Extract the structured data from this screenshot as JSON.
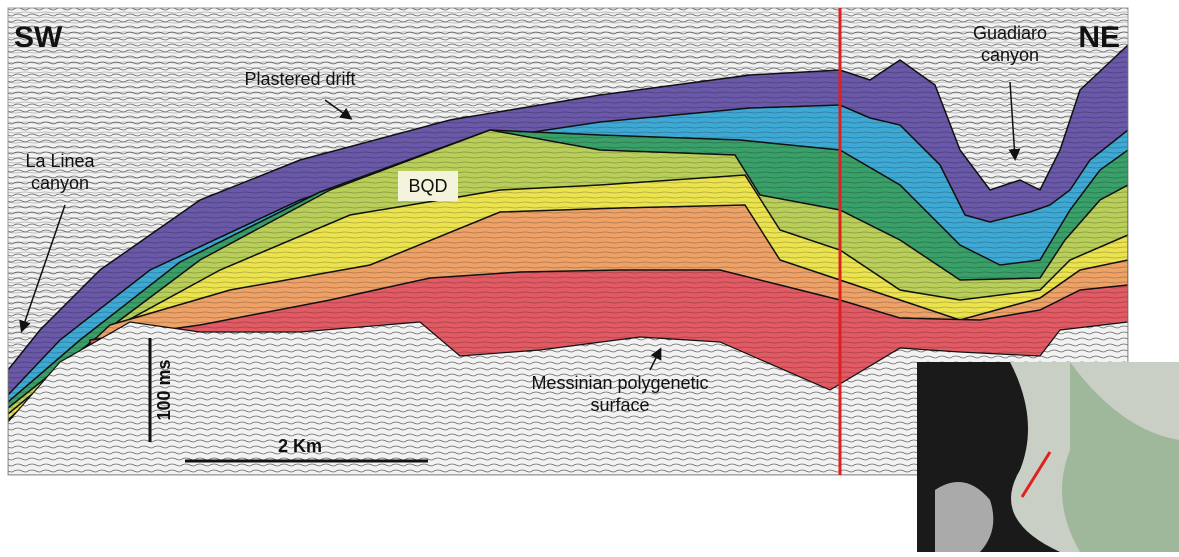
{
  "panel": {
    "left_label": "SW",
    "right_label": "NE"
  },
  "annotations": {
    "plastered_drift": "Plastered drift",
    "la_linea": "La Linea canyon",
    "bqd": "BQD",
    "guadiaro": "Guadiaro canyon",
    "messinian": "Messinian polygenetic surface"
  },
  "scale": {
    "vertical": "100 ms",
    "horizontal": "2 Km"
  }
}
